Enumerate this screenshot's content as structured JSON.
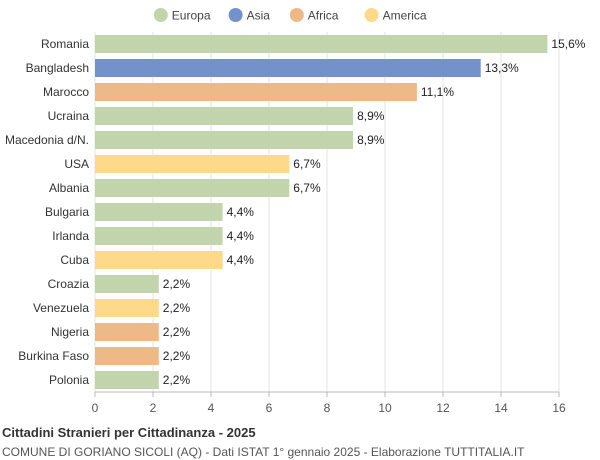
{
  "chart_data": {
    "type": "bar",
    "orientation": "horizontal",
    "categories": [
      "Romania",
      "Bangladesh",
      "Marocco",
      "Ucraina",
      "Macedonia d/N.",
      "USA",
      "Albania",
      "Bulgaria",
      "Irlanda",
      "Cuba",
      "Croazia",
      "Venezuela",
      "Nigeria",
      "Burkina Faso",
      "Polonia"
    ],
    "values": [
      15.6,
      13.3,
      11.1,
      8.9,
      8.9,
      6.7,
      6.7,
      4.4,
      4.4,
      4.4,
      2.2,
      2.2,
      2.2,
      2.2,
      2.2
    ],
    "value_labels": [
      "15,6%",
      "13,3%",
      "11,1%",
      "8,9%",
      "8,9%",
      "6,7%",
      "6,7%",
      "4,4%",
      "4,4%",
      "4,4%",
      "2,2%",
      "2,2%",
      "2,2%",
      "2,2%",
      "2,2%"
    ],
    "groups": [
      "Europa",
      "Asia",
      "Africa",
      "Europa",
      "Europa",
      "America",
      "Europa",
      "Europa",
      "Europa",
      "America",
      "Europa",
      "America",
      "Africa",
      "Africa",
      "Europa"
    ],
    "legend": [
      {
        "name": "Europa",
        "color": "#c2d4ac"
      },
      {
        "name": "Asia",
        "color": "#7391cb"
      },
      {
        "name": "Africa",
        "color": "#efb987"
      },
      {
        "name": "America",
        "color": "#fed98a"
      }
    ],
    "legend_position": "top",
    "xlim": [
      0,
      16
    ],
    "xticks": [
      0,
      2,
      4,
      6,
      8,
      10,
      12,
      14,
      16
    ],
    "grid": true,
    "title": "Cittadini Stranieri per Cittadinanza - 2025",
    "subtitle": "COMUNE DI GORIANO SICOLI (AQ) - Dati ISTAT 1° gennaio 2025 - Elaborazione TUTTITALIA.IT"
  }
}
